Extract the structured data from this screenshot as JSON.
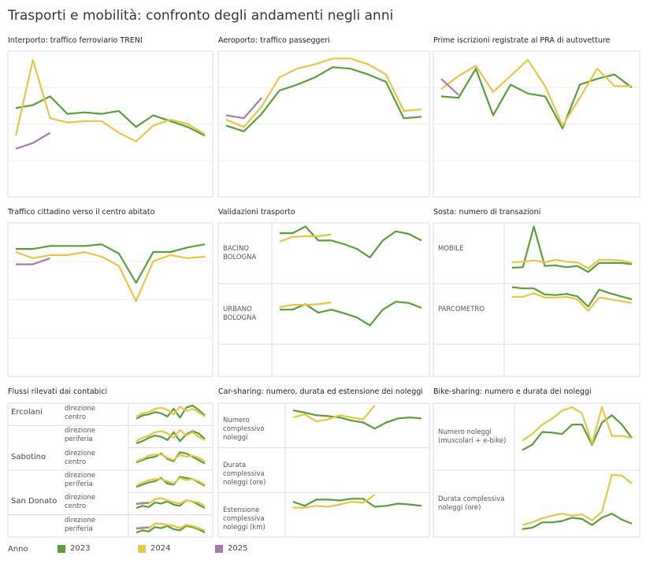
{
  "title": "Trasporti e mobilità: confronto degli andamenti negli anni",
  "legend": {
    "title": "Anno",
    "series": [
      {
        "name": "2023",
        "color": "#5a9e3c"
      },
      {
        "name": "2024",
        "color": "#e8c547"
      },
      {
        "name": "2025",
        "color": "#a67aa8"
      }
    ]
  },
  "chart_data": [
    {
      "type": "line",
      "title": "Interporto: traffico ferroviario TRENI",
      "ylim": [
        0,
        100
      ],
      "rows": [
        {
          "values": [
            [
              61,
              63,
              69,
              57,
              58,
              57,
              59,
              48,
              56,
              52,
              48,
              42
            ],
            [
              42,
              94,
              54,
              51,
              52,
              52,
              44,
              38,
              49,
              53,
              50,
              43
            ],
            [
              33,
              37,
              44,
              null,
              null,
              null,
              null,
              null,
              null,
              null,
              null,
              null
            ]
          ]
        }
      ]
    },
    {
      "type": "line",
      "title": "Aeroporto: traffico passeggeri",
      "ylim": [
        0,
        100
      ],
      "rows": [
        {
          "values": [
            [
              49,
              45,
              57,
              73,
              77,
              82,
              89,
              88,
              84,
              79,
              54,
              55
            ],
            [
              53,
              48,
              62,
              82,
              88,
              91,
              95,
              95,
              91,
              84,
              59,
              60
            ],
            [
              56,
              54,
              68,
              null,
              null,
              null,
              null,
              null,
              null,
              null,
              null,
              null
            ]
          ]
        }
      ]
    },
    {
      "type": "line",
      "title": "Prime iscrizioni registrate al PRA di autovetture",
      "ylim": [
        0,
        100
      ],
      "rows": [
        {
          "values": [
            [
              69,
              68,
              88,
              56,
              77,
              71,
              69,
              47,
              77,
              81,
              84,
              75
            ],
            [
              74,
              83,
              90,
              72,
              83,
              94,
              76,
              49,
              68,
              88,
              76,
              76
            ],
            [
              81,
              70,
              null,
              null,
              null,
              null,
              null,
              null,
              null,
              null,
              null,
              null
            ]
          ]
        }
      ]
    },
    {
      "type": "line",
      "title": "Traffico cittadino verso il centro abitato",
      "ylim": [
        0,
        100
      ],
      "rows": [
        {
          "values": [
            [
              83,
              83,
              85,
              85,
              85,
              86,
              80,
              61,
              81,
              81,
              84,
              86
            ],
            [
              81,
              77,
              79,
              79,
              81,
              78,
              72,
              49,
              75,
              79,
              77,
              78
            ],
            [
              73,
              73,
              77,
              null,
              null,
              null,
              null,
              null,
              null,
              null,
              null,
              null
            ]
          ]
        }
      ]
    },
    {
      "type": "line",
      "title": "Validazioni trasporto",
      "ylim": [
        0,
        100
      ],
      "rows": [
        {
          "label": "BACINO BOLOGNA",
          "values": [
            [
              83,
              83,
              94,
              71,
              71,
              65,
              57,
              43,
              71,
              86,
              82,
              71
            ],
            [
              69,
              77,
              78,
              78,
              81,
              null,
              null,
              null,
              null,
              null,
              null,
              null
            ],
            [
              null,
              null,
              null,
              null,
              null,
              null,
              null,
              null,
              null,
              null,
              null,
              null
            ]
          ]
        },
        {
          "label": "URBANO BOLOGNA",
          "values": [
            [
              57,
              57,
              66,
              52,
              57,
              51,
              44,
              31,
              57,
              70,
              68,
              60
            ],
            [
              61,
              65,
              65,
              66,
              69,
              null,
              null,
              null,
              null,
              null,
              null,
              null
            ],
            [
              null,
              null,
              null,
              null,
              null,
              null,
              null,
              null,
              null,
              null,
              null,
              null
            ]
          ]
        }
      ]
    },
    {
      "type": "line",
      "title": "Sosta: numero di transazioni",
      "ylim": [
        0,
        100
      ],
      "rows": [
        {
          "label": "MOBILE",
          "values": [
            [
              26,
              27,
              94,
              29,
              30,
              27,
              29,
              19,
              34,
              34,
              34,
              32
            ],
            [
              35,
              36,
              38,
              35,
              39,
              36,
              35,
              25,
              39,
              39,
              38,
              34
            ],
            [
              null,
              null,
              null,
              null,
              null,
              null,
              null,
              null,
              null,
              null,
              null,
              null
            ]
          ]
        },
        {
          "label": "PARCOMETRO",
          "values": [
            [
              94,
              92,
              92,
              82,
              81,
              83,
              79,
              62,
              90,
              84,
              79,
              74
            ],
            [
              78,
              78,
              84,
              77,
              77,
              78,
              74,
              55,
              77,
              74,
              71,
              68
            ],
            [
              null,
              null,
              null,
              null,
              null,
              null,
              null,
              null,
              null,
              null,
              null,
              null
            ]
          ]
        }
      ]
    },
    {
      "type": "line",
      "title": "Flussi rilevati dai contabici",
      "ylim": [
        0,
        100
      ],
      "rows": [
        {
          "group": "Ercolani",
          "label": "direzione centro",
          "values": [
            [
              30,
              45,
              50,
              60,
              55,
              40,
              75,
              35,
              80,
              90,
              70,
              45
            ],
            [
              40,
              55,
              60,
              75,
              80,
              70,
              50,
              85,
              65,
              75,
              60,
              40
            ],
            [
              null,
              null,
              null,
              null,
              null,
              null,
              null,
              null,
              null,
              null,
              null,
              null
            ]
          ]
        },
        {
          "label": "direzione periferia",
          "values": [
            [
              20,
              30,
              45,
              55,
              50,
              35,
              70,
              30,
              60,
              75,
              65,
              40
            ],
            [
              30,
              45,
              55,
              70,
              75,
              65,
              45,
              80,
              55,
              70,
              50,
              35
            ],
            [
              null,
              null,
              null,
              null,
              null,
              null,
              null,
              null,
              null,
              null,
              null,
              null
            ]
          ]
        },
        {
          "group": "Sabotino",
          "label": "direzione centro",
          "values": [
            [
              35,
              45,
              55,
              60,
              75,
              50,
              40,
              80,
              75,
              60,
              45,
              30
            ],
            [
              40,
              50,
              65,
              70,
              70,
              55,
              45,
              70,
              60,
              65,
              55,
              40
            ],
            [
              null,
              null,
              null,
              null,
              null,
              null,
              null,
              null,
              null,
              null,
              null,
              null
            ]
          ]
        },
        {
          "label": "direzione periferia",
          "values": [
            [
              25,
              35,
              45,
              50,
              65,
              40,
              35,
              70,
              65,
              60,
              45,
              30
            ],
            [
              30,
              45,
              55,
              60,
              60,
              50,
              40,
              65,
              55,
              60,
              50,
              35
            ],
            [
              null,
              null,
              null,
              null,
              null,
              null,
              null,
              null,
              null,
              null,
              null,
              null
            ]
          ]
        },
        {
          "group": "San Donato",
          "label": "direzione centro",
          "values": [
            [
              30,
              40,
              35,
              55,
              50,
              60,
              45,
              40,
              65,
              60,
              45,
              30
            ],
            [
              45,
              55,
              50,
              70,
              75,
              65,
              55,
              50,
              65,
              60,
              55,
              40
            ],
            [
              50,
              50,
              55,
              null,
              null,
              null,
              null,
              null,
              null,
              null,
              null,
              null
            ]
          ]
        },
        {
          "label": "direzione periferia",
          "values": [
            [
              20,
              30,
              25,
              45,
              40,
              50,
              35,
              30,
              50,
              45,
              35,
              20
            ],
            [
              35,
              45,
              40,
              60,
              60,
              55,
              50,
              40,
              55,
              50,
              40,
              30
            ],
            [
              40,
              40,
              45,
              null,
              null,
              null,
              null,
              null,
              null,
              null,
              null,
              null
            ]
          ]
        }
      ]
    },
    {
      "type": "line",
      "title": "Car-sharing: numero, durata ed estensione dei noleggi",
      "ylim": [
        0,
        100
      ],
      "rows": [
        {
          "label": "Numero complessivo noleggi",
          "values": [
            [
              84,
              79,
              73,
              71,
              68,
              61,
              57,
              43,
              57,
              66,
              68,
              66
            ],
            [
              68,
              75,
              59,
              64,
              73,
              68,
              64,
              95,
              null,
              null,
              null,
              null
            ],
            [
              null,
              null,
              null,
              null,
              null,
              null,
              null,
              null,
              null,
              null,
              null,
              null
            ]
          ]
        },
        {
          "label": "Durata complessiva noleggi (ore)",
          "values": [
            [
              null,
              null,
              null,
              null,
              null,
              null,
              null,
              null,
              null,
              null,
              null,
              null
            ],
            [
              null,
              null,
              null,
              null,
              null,
              null,
              null,
              null,
              null,
              null,
              null,
              null
            ],
            [
              null,
              null,
              null,
              null,
              null,
              null,
              null,
              null,
              null,
              null,
              null,
              null
            ]
          ]
        },
        {
          "label": "Estensione complessiva noleggi (km)",
          "values": [
            [
              79,
              70,
              84,
              84,
              82,
              86,
              86,
              68,
              70,
              75,
              73,
              70
            ],
            [
              66,
              66,
              70,
              68,
              73,
              79,
              77,
              95,
              null,
              null,
              null,
              null
            ],
            [
              null,
              null,
              null,
              null,
              null,
              null,
              null,
              null,
              null,
              null,
              null,
              null
            ]
          ]
        }
      ]
    },
    {
      "type": "line",
      "title": "Bike-sharing: numero e durata dei noleggi",
      "ylim": [
        0,
        100
      ],
      "rows": [
        {
          "label": "Numero noleggi (muscolari + e-bike)",
          "values": [
            [
              30,
              38,
              57,
              56,
              54,
              68,
              68,
              38,
              71,
              82,
              68,
              48
            ],
            [
              44,
              54,
              68,
              77,
              89,
              94,
              85,
              40,
              94,
              51,
              51,
              48
            ],
            [
              null,
              null,
              null,
              null,
              null,
              null,
              null,
              null,
              null,
              null,
              null,
              null
            ]
          ]
        },
        {
          "label": "Durata complessiva noleggi (ore)",
          "values": [
            [
              12,
              14,
              22,
              22,
              24,
              29,
              27,
              18,
              29,
              35,
              26,
              20
            ],
            [
              18,
              22,
              28,
              32,
              35,
              32,
              34,
              25,
              38,
              93,
              92,
              80
            ],
            [
              null,
              null,
              null,
              null,
              null,
              null,
              null,
              null,
              null,
              null,
              null,
              null
            ]
          ]
        }
      ]
    }
  ]
}
